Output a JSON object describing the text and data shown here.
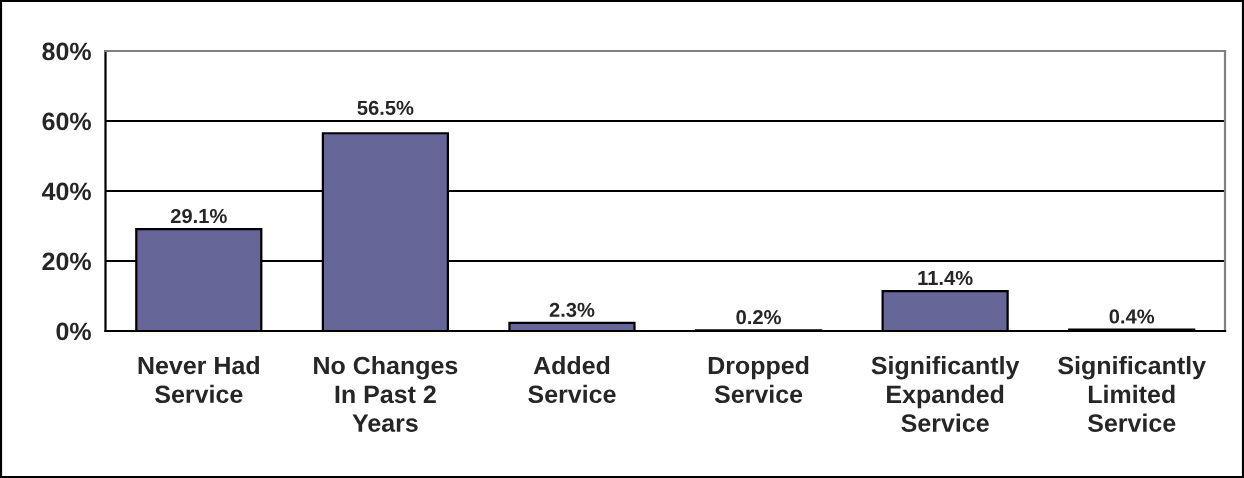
{
  "chart_data": {
    "type": "bar",
    "categories": [
      "Never Had\nService",
      "No Changes\nIn Past 2\nYears",
      "Added\nService",
      "Dropped\nService",
      "Significantly\nExpanded\nService",
      "Significantly\nLimited\nService"
    ],
    "values": [
      29.1,
      56.5,
      2.3,
      0.2,
      11.4,
      0.4
    ],
    "value_labels": [
      "29.1%",
      "56.5%",
      "2.3%",
      "0.2%",
      "11.4%",
      "0.4%"
    ],
    "color": "#666699",
    "ylim": [
      0,
      80
    ],
    "yticks": [
      {
        "value": 0,
        "label": "0%"
      },
      {
        "value": 20,
        "label": "20%"
      },
      {
        "value": 40,
        "label": "40%"
      },
      {
        "value": 60,
        "label": "60%"
      },
      {
        "value": 80,
        "label": "80%"
      }
    ],
    "grid": "y",
    "legend": false
  }
}
